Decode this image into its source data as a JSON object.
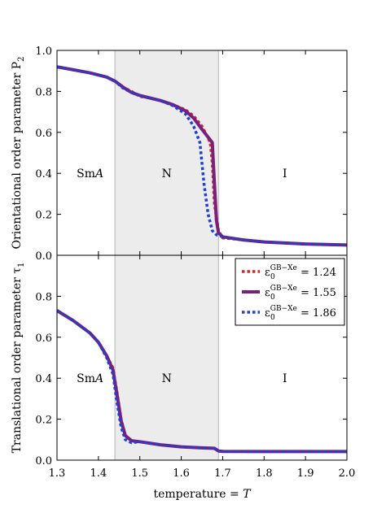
{
  "chart_data": [
    {
      "type": "line",
      "panel": "top",
      "ylabel": "Orientational order parameter P",
      "ylabel_sub": "2",
      "xlabel": "",
      "xlim": [
        1.3,
        2.0
      ],
      "ylim": [
        0.0,
        1.0
      ],
      "xticks": [
        "1.3",
        "1.4",
        "1.5",
        "1.6",
        "1.7",
        "1.8",
        "1.9",
        "2.0"
      ],
      "yticks": [
        "0.0",
        "0.2",
        "0.4",
        "0.6",
        "0.8",
        "1.0"
      ],
      "shaded_region": [
        1.44,
        1.69
      ],
      "phase_labels": [
        {
          "main": "Sm",
          "italic": "A",
          "x": 1.38,
          "y": 0.4
        },
        {
          "main": "N",
          "italic": "",
          "x": 1.565,
          "y": 0.4
        },
        {
          "main": "I",
          "italic": "",
          "x": 1.85,
          "y": 0.4
        }
      ],
      "series": [
        {
          "color": "#d62728",
          "style": "dotted",
          "x": [
            1.3,
            1.34,
            1.38,
            1.42,
            1.44,
            1.46,
            1.48,
            1.5,
            1.52,
            1.55,
            1.58,
            1.61,
            1.63,
            1.65,
            1.67,
            1.675,
            1.68,
            1.69,
            1.7,
            1.75,
            1.8,
            1.9,
            2.0
          ],
          "y": [
            0.92,
            0.905,
            0.89,
            0.87,
            0.85,
            0.82,
            0.8,
            0.775,
            0.77,
            0.755,
            0.735,
            0.71,
            0.68,
            0.63,
            0.55,
            0.45,
            0.25,
            0.12,
            0.085,
            0.075,
            0.065,
            0.055,
            0.05
          ]
        },
        {
          "color": "#7a1f7a",
          "style": "solid",
          "x": [
            1.3,
            1.34,
            1.38,
            1.42,
            1.44,
            1.46,
            1.48,
            1.5,
            1.52,
            1.55,
            1.58,
            1.61,
            1.63,
            1.65,
            1.675,
            1.68,
            1.685,
            1.69,
            1.7,
            1.75,
            1.8,
            1.9,
            2.0
          ],
          "y": [
            0.92,
            0.905,
            0.89,
            0.87,
            0.85,
            0.82,
            0.795,
            0.78,
            0.77,
            0.755,
            0.735,
            0.705,
            0.67,
            0.615,
            0.55,
            0.35,
            0.17,
            0.11,
            0.09,
            0.075,
            0.065,
            0.055,
            0.05
          ]
        },
        {
          "color": "#1f3fd6",
          "style": "dotted",
          "x": [
            1.3,
            1.34,
            1.38,
            1.42,
            1.44,
            1.46,
            1.48,
            1.5,
            1.52,
            1.55,
            1.58,
            1.61,
            1.63,
            1.645,
            1.655,
            1.665,
            1.675,
            1.685,
            1.7,
            1.75,
            1.8,
            1.9,
            2.0
          ],
          "y": [
            0.92,
            0.905,
            0.89,
            0.87,
            0.85,
            0.815,
            0.795,
            0.78,
            0.77,
            0.755,
            0.73,
            0.69,
            0.63,
            0.55,
            0.35,
            0.2,
            0.12,
            0.1,
            0.09,
            0.075,
            0.065,
            0.055,
            0.05
          ]
        }
      ]
    },
    {
      "type": "line",
      "panel": "bottom",
      "ylabel": "Translational order parameter τ",
      "ylabel_sub": "1",
      "xlabel": "temperature = ",
      "xlabel_italic": "T",
      "xlim": [
        1.3,
        2.0
      ],
      "ylim": [
        0.0,
        1.0
      ],
      "xticks": [
        "1.3",
        "1.4",
        "1.5",
        "1.6",
        "1.7",
        "1.8",
        "1.9",
        "2.0"
      ],
      "yticks": [
        "0.0",
        "0.2",
        "0.4",
        "0.6",
        "0.8"
      ],
      "shaded_region": [
        1.44,
        1.69
      ],
      "phase_labels": [
        {
          "main": "Sm",
          "italic": "A",
          "x": 1.38,
          "y": 0.4
        },
        {
          "main": "N",
          "italic": "",
          "x": 1.565,
          "y": 0.4
        },
        {
          "main": "I",
          "italic": "",
          "x": 1.85,
          "y": 0.4
        }
      ],
      "legend": {
        "position": "top-right",
        "entries": [
          {
            "symbol": "ε",
            "sub": "0",
            "sup": "GB−Xe",
            "value": "= 1.24",
            "color": "#d62728",
            "style": "dotted"
          },
          {
            "symbol": "ε",
            "sub": "0",
            "sup": "GB−Xe",
            "value": "= 1.55",
            "color": "#7a1f7a",
            "style": "solid"
          },
          {
            "symbol": "ε",
            "sub": "0",
            "sup": "GB−Xe",
            "value": "= 1.86",
            "color": "#1f3fd6",
            "style": "dotted"
          }
        ]
      },
      "series": [
        {
          "color": "#d62728",
          "style": "dotted",
          "x": [
            1.3,
            1.34,
            1.38,
            1.4,
            1.42,
            1.435,
            1.445,
            1.455,
            1.465,
            1.48,
            1.5,
            1.55,
            1.6,
            1.65,
            1.68,
            1.69,
            1.7,
            1.8,
            1.9,
            2.0
          ],
          "y": [
            0.73,
            0.68,
            0.62,
            0.575,
            0.51,
            0.45,
            0.33,
            0.2,
            0.12,
            0.095,
            0.09,
            0.075,
            0.065,
            0.06,
            0.058,
            0.045,
            0.043,
            0.042,
            0.042,
            0.042
          ]
        },
        {
          "color": "#7a1f7a",
          "style": "solid",
          "x": [
            1.3,
            1.34,
            1.38,
            1.4,
            1.42,
            1.435,
            1.445,
            1.455,
            1.465,
            1.48,
            1.5,
            1.55,
            1.6,
            1.65,
            1.68,
            1.69,
            1.7,
            1.8,
            1.9,
            2.0
          ],
          "y": [
            0.73,
            0.68,
            0.62,
            0.575,
            0.51,
            0.44,
            0.32,
            0.19,
            0.12,
            0.095,
            0.09,
            0.075,
            0.065,
            0.06,
            0.058,
            0.045,
            0.043,
            0.042,
            0.042,
            0.042
          ]
        },
        {
          "color": "#1f3fd6",
          "style": "dotted",
          "x": [
            1.3,
            1.34,
            1.38,
            1.4,
            1.42,
            1.435,
            1.445,
            1.455,
            1.465,
            1.48,
            1.5,
            1.55,
            1.6,
            1.65,
            1.68,
            1.69,
            1.7,
            1.8,
            1.9,
            2.0
          ],
          "y": [
            0.73,
            0.68,
            0.62,
            0.575,
            0.5,
            0.42,
            0.28,
            0.16,
            0.1,
            0.085,
            0.09,
            0.075,
            0.065,
            0.06,
            0.058,
            0.045,
            0.043,
            0.042,
            0.042,
            0.042
          ]
        }
      ]
    }
  ]
}
